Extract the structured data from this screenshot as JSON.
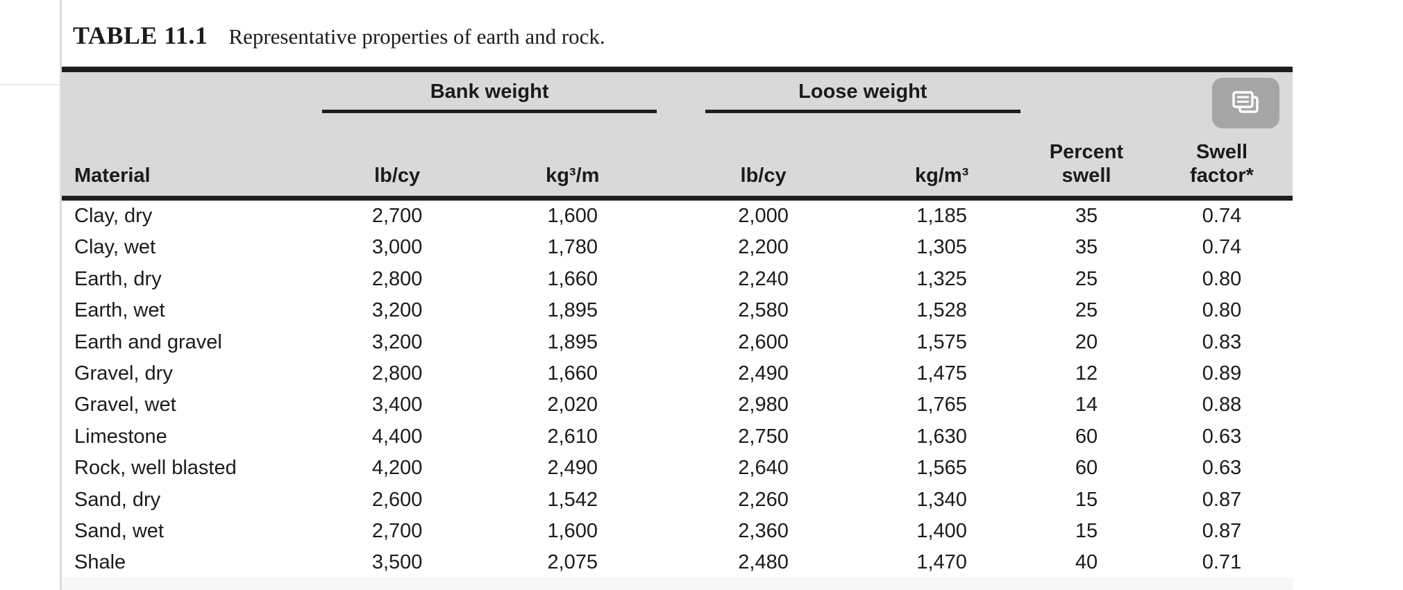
{
  "title": {
    "label": "TABLE 11.1",
    "caption": "Representative properties of earth and rock."
  },
  "table": {
    "group_headers": [
      {
        "label": "Bank weight"
      },
      {
        "label": "Loose weight"
      }
    ],
    "columns": [
      "Material",
      "lb/cy",
      "kg³/m",
      "lb/cy",
      "kg/m³",
      "Percent\nswell",
      "Swell\nfactor*"
    ],
    "rows": [
      [
        "Clay, dry",
        "2,700",
        "1,600",
        "2,000",
        "1,185",
        "35",
        "0.74"
      ],
      [
        "Clay, wet",
        "3,000",
        "1,780",
        "2,200",
        "1,305",
        "35",
        "0.74"
      ],
      [
        "Earth, dry",
        "2,800",
        "1,660",
        "2,240",
        "1,325",
        "25",
        "0.80"
      ],
      [
        "Earth, wet",
        "3,200",
        "1,895",
        "2,580",
        "1,528",
        "25",
        "0.80"
      ],
      [
        "Earth and gravel",
        "3,200",
        "1,895",
        "2,600",
        "1,575",
        "20",
        "0.83"
      ],
      [
        "Gravel, dry",
        "2,800",
        "1,660",
        "2,490",
        "1,475",
        "12",
        "0.89"
      ],
      [
        "Gravel, wet",
        "3,400",
        "2,020",
        "2,980",
        "1,765",
        "14",
        "0.88"
      ],
      [
        "Limestone",
        "4,400",
        "2,610",
        "2,750",
        "1,630",
        "60",
        "0.63"
      ],
      [
        "Rock, well blasted",
        "4,200",
        "2,490",
        "2,640",
        "1,565",
        "60",
        "0.63"
      ],
      [
        "Sand, dry",
        "2,600",
        "1,542",
        "2,260",
        "1,340",
        "15",
        "0.87"
      ],
      [
        "Sand, wet",
        "2,700",
        "1,600",
        "2,360",
        "1,400",
        "15",
        "0.87"
      ],
      [
        "Shale",
        "3,500",
        "2,075",
        "2,480",
        "1,470",
        "40",
        "0.71"
      ]
    ]
  },
  "overlay": {
    "copy_button_icon": "copy-pages-icon"
  },
  "colors": {
    "header_band": "#d9d9d9",
    "rule": "#1e1e1e",
    "overlay_button": "#a6a6a6",
    "page_edge_line": "#dcdcdc"
  }
}
